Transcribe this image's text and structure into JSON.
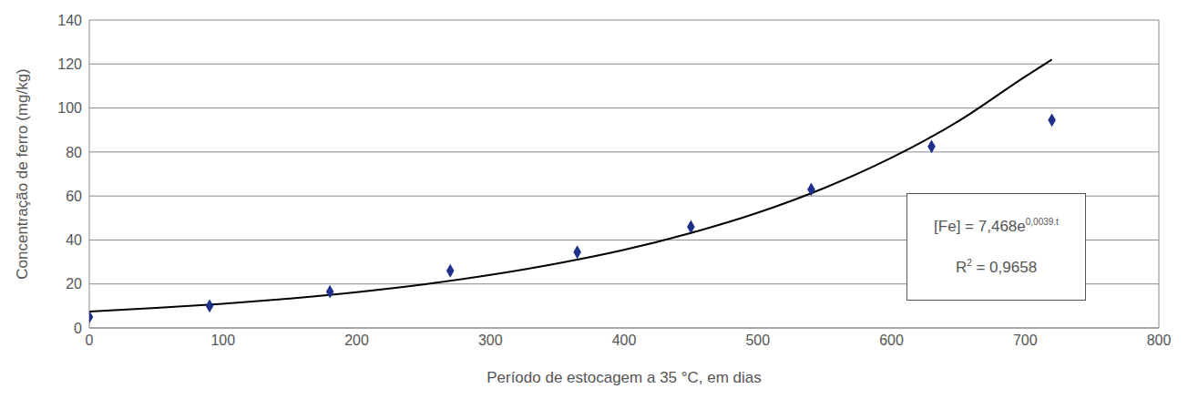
{
  "chart_data": {
    "type": "scatter",
    "x_label": "Período de estocagem a 35 °C, em dias",
    "y_label": "Concentração de ferro (mg/kg)",
    "xlim": [
      0,
      800
    ],
    "xticks": [
      0,
      100,
      200,
      300,
      400,
      500,
      600,
      700,
      800
    ],
    "ylim": [
      0,
      140
    ],
    "yticks": [
      0,
      20,
      40,
      60,
      80,
      100,
      120,
      140
    ],
    "grid": true,
    "series": [
      {
        "type": "scatter",
        "color": "#1f2f8c",
        "marker": "diamond",
        "x": [
          0,
          90,
          180,
          270,
          365,
          450,
          540,
          630,
          720
        ],
        "values": [
          5,
          10,
          16.5,
          26,
          34.5,
          46,
          63,
          82.5,
          94.5
        ]
      },
      {
        "type": "line",
        "color": "#000000",
        "x": [
          0,
          50,
          100,
          150,
          200,
          250,
          300,
          350,
          400,
          450,
          500,
          550,
          600,
          650,
          700,
          720
        ],
        "values": [
          7.5,
          9.1,
          11,
          13.4,
          16.3,
          19.8,
          24.1,
          29.3,
          35.5,
          43.2,
          52.4,
          63.7,
          77.4,
          94,
          114.3,
          122
        ]
      }
    ],
    "annotations": [
      {
        "text": "[Fe] = 7,468e",
        "superscript": "0,0039.t"
      },
      {
        "text": "R",
        "superscript": "2",
        "text_after": " = 0,9658"
      }
    ]
  }
}
